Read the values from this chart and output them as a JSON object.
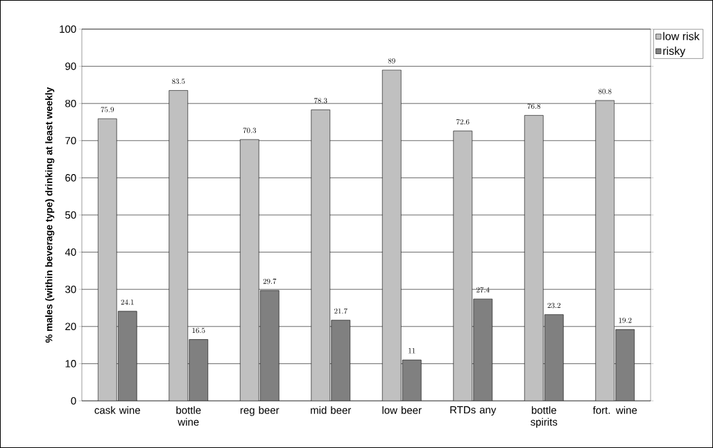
{
  "chart_data": {
    "type": "bar",
    "ylabel": "% males (within beverage type) drinking at least weekly",
    "categories": [
      "cask wine",
      "bottle wine",
      "reg beer",
      "mid beer",
      "low beer",
      "RTDs any",
      "bottle spirits",
      "fort. wine"
    ],
    "series": [
      {
        "name": "low risk",
        "color": "#c0c0c0",
        "values": [
          75.9,
          83.5,
          70.3,
          78.3,
          89,
          72.6,
          76.8,
          80.8
        ]
      },
      {
        "name": "risky",
        "color": "#808080",
        "values": [
          24.1,
          16.5,
          29.7,
          21.7,
          11,
          27.4,
          23.2,
          19.2
        ]
      }
    ],
    "ylim": [
      0,
      100
    ],
    "yticks": [
      0,
      10,
      20,
      30,
      40,
      50,
      60,
      70,
      80,
      90,
      100
    ],
    "grid": "y",
    "legend": "top right",
    "data_labels": true
  }
}
